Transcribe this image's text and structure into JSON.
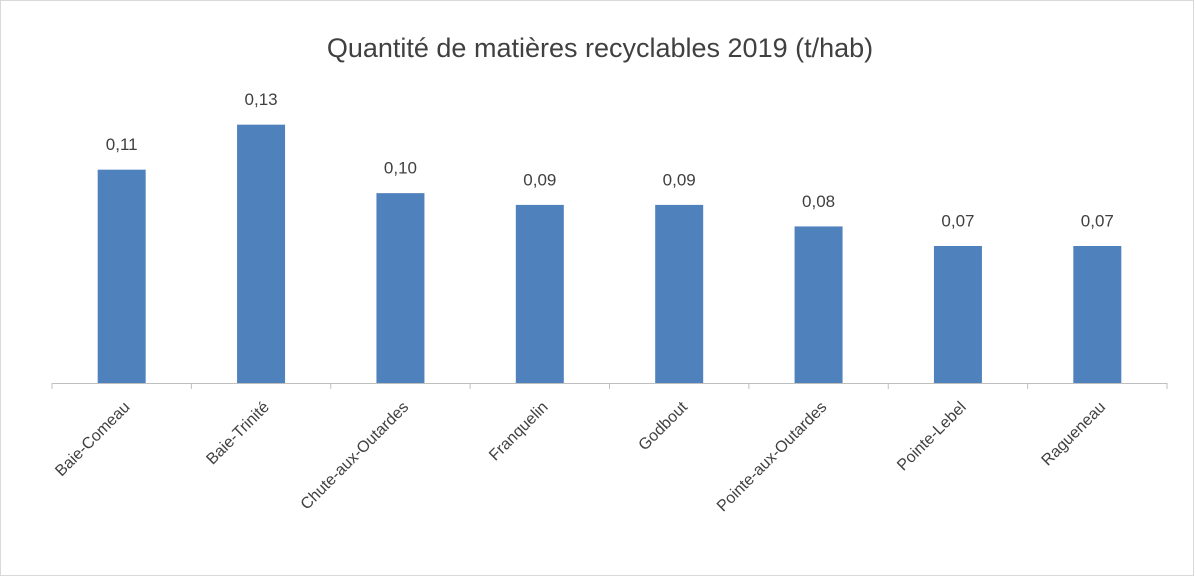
{
  "chart_data": {
    "type": "bar",
    "title": "Quantité de matières recyclables 2019 (t/hab)",
    "categories": [
      "Baie-Comeau",
      "Baie-Trinité",
      "Chute-aux-Outardes",
      "Franquelin",
      "Godbout",
      "Pointe-aux-Outardes",
      "Pointe-Lebel",
      "Ragueneau"
    ],
    "values": [
      0.109,
      0.132,
      0.097,
      0.091,
      0.091,
      0.08,
      0.07,
      0.07
    ],
    "value_labels": [
      "0,11",
      "0,13",
      "0,10",
      "0,09",
      "0,09",
      "0,08",
      "0,07",
      "0,07"
    ],
    "color": "#4f81bd",
    "ylim": [
      0,
      0.14
    ]
  }
}
